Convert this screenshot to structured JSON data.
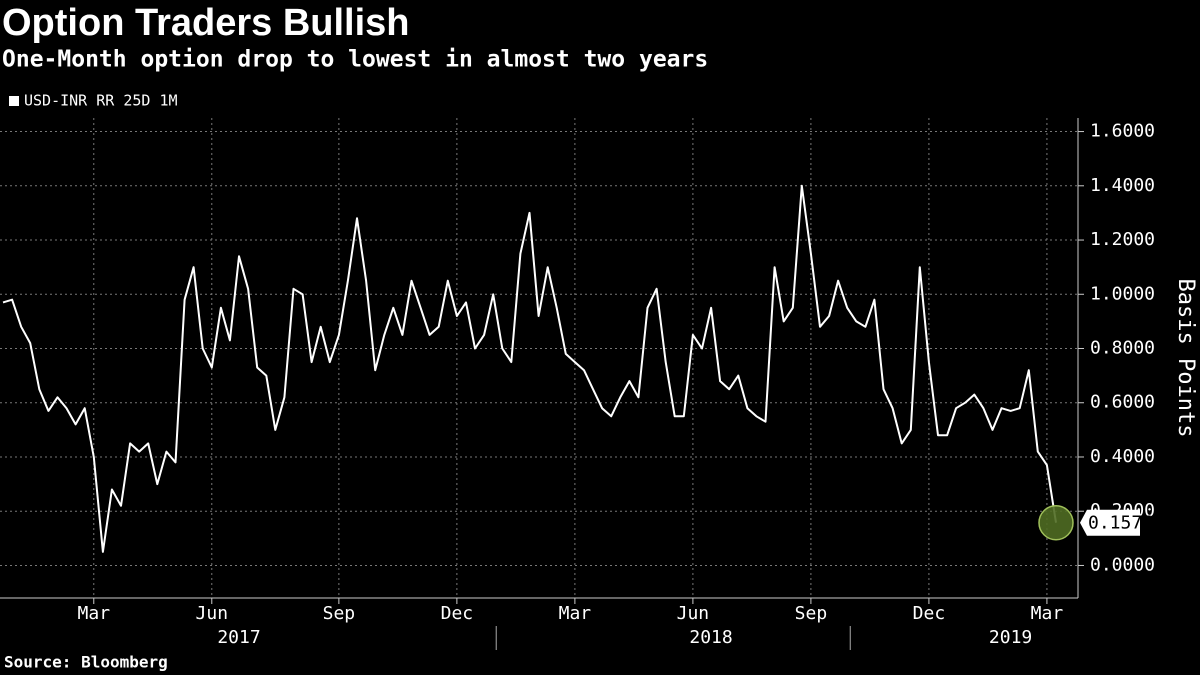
{
  "chart_data": {
    "type": "line",
    "title": "Option Traders Bullish",
    "subtitle": "One-Month option drop to lowest in almost two years",
    "source": "Source: Bloomberg",
    "y_label": "Basis Points",
    "categories": [
      null,
      null,
      null,
      null,
      null,
      null,
      null,
      null,
      null,
      null,
      "Mar",
      null,
      null,
      null,
      null,
      null,
      null,
      null,
      null,
      null,
      null,
      null,
      null,
      "Jun",
      null,
      null,
      null,
      null,
      null,
      null,
      null,
      null,
      null,
      null,
      null,
      null,
      null,
      "Sep",
      null,
      null,
      null,
      null,
      null,
      null,
      null,
      null,
      null,
      null,
      null,
      null,
      "Dec",
      null,
      null,
      null,
      null,
      null,
      null,
      null,
      null,
      null,
      null,
      null,
      null,
      "Mar",
      null,
      null,
      null,
      null,
      null,
      null,
      null,
      null,
      null,
      null,
      null,
      null,
      "Jun",
      null,
      null,
      null,
      null,
      null,
      null,
      null,
      null,
      null,
      null,
      null,
      null,
      "Sep",
      null,
      null,
      null,
      null,
      null,
      null,
      null,
      null,
      null,
      null,
      null,
      null,
      "Dec",
      null,
      null,
      null,
      null,
      null,
      null,
      null,
      null,
      null,
      null,
      null,
      null,
      "Mar",
      null
    ],
    "year_labels": [
      null,
      null,
      null,
      null,
      null,
      null,
      null,
      null,
      null,
      null,
      null,
      null,
      null,
      null,
      null,
      null,
      null,
      null,
      null,
      null,
      null,
      null,
      null,
      null,
      null,
      null,
      "2017",
      null,
      null,
      null,
      null,
      null,
      null,
      null,
      null,
      null,
      null,
      null,
      null,
      null,
      null,
      null,
      null,
      null,
      null,
      null,
      null,
      null,
      null,
      null,
      null,
      null,
      null,
      null,
      null,
      null,
      null,
      null,
      null,
      null,
      null,
      null,
      null,
      null,
      null,
      null,
      null,
      null,
      null,
      null,
      null,
      null,
      null,
      null,
      null,
      null,
      null,
      null,
      "2018",
      null,
      null,
      null,
      null,
      null,
      null,
      null,
      null,
      null,
      null,
      null,
      null,
      null,
      null,
      null,
      null,
      null,
      null,
      null,
      null,
      null,
      null,
      null,
      null,
      null,
      null,
      null,
      null,
      null,
      null,
      null,
      null,
      "2019",
      null,
      null,
      null,
      null,
      null
    ],
    "series": [
      {
        "name": "USD-INR RR 25D 1M",
        "color": "#ffffff",
        "values": [
          0.97,
          0.98,
          0.88,
          0.82,
          0.65,
          0.57,
          0.62,
          0.58,
          0.52,
          0.58,
          0.4,
          0.05,
          0.28,
          0.22,
          0.45,
          0.42,
          0.45,
          0.3,
          0.42,
          0.38,
          0.98,
          1.1,
          0.8,
          0.73,
          0.95,
          0.83,
          1.14,
          1.02,
          0.73,
          0.7,
          0.5,
          0.62,
          1.02,
          1.0,
          0.75,
          0.88,
          0.75,
          0.85,
          1.05,
          1.28,
          1.05,
          0.72,
          0.85,
          0.95,
          0.85,
          1.05,
          0.95,
          0.85,
          0.88,
          1.05,
          0.92,
          0.97,
          0.8,
          0.85,
          1.0,
          0.8,
          0.75,
          1.15,
          1.3,
          0.92,
          1.1,
          0.95,
          0.78,
          0.75,
          0.72,
          0.65,
          0.58,
          0.55,
          0.62,
          0.68,
          0.62,
          0.95,
          1.02,
          0.75,
          0.55,
          0.55,
          0.85,
          0.8,
          0.95,
          0.68,
          0.65,
          0.7,
          0.58,
          0.55,
          0.53,
          1.1,
          0.9,
          0.95,
          1.4,
          1.15,
          0.88,
          0.92,
          1.05,
          0.95,
          0.9,
          0.88,
          0.98,
          0.65,
          0.58,
          0.45,
          0.5,
          1.1,
          0.75,
          0.48,
          0.48,
          0.58,
          0.6,
          0.63,
          0.58,
          0.5,
          0.58,
          0.57,
          0.58,
          0.72,
          0.42,
          0.37,
          0.1575
        ]
      }
    ],
    "last_point_marker_color": "#4f6b22",
    "ylim": [
      -0.12,
      1.65
    ],
    "yticks": [
      {
        "value": 0,
        "label": "0.0000"
      },
      {
        "value": 0.2,
        "label": "0.2000"
      },
      {
        "value": 0.4,
        "label": "0.4000"
      },
      {
        "value": 0.6,
        "label": "0.6000"
      },
      {
        "value": 0.8,
        "label": "0.8000"
      },
      {
        "value": 1.0,
        "label": "1.0000"
      },
      {
        "value": 1.2,
        "label": "1.2000"
      },
      {
        "value": 1.4,
        "label": "1.4000"
      },
      {
        "value": 1.6,
        "label": "1.6000"
      }
    ],
    "grid": true
  }
}
